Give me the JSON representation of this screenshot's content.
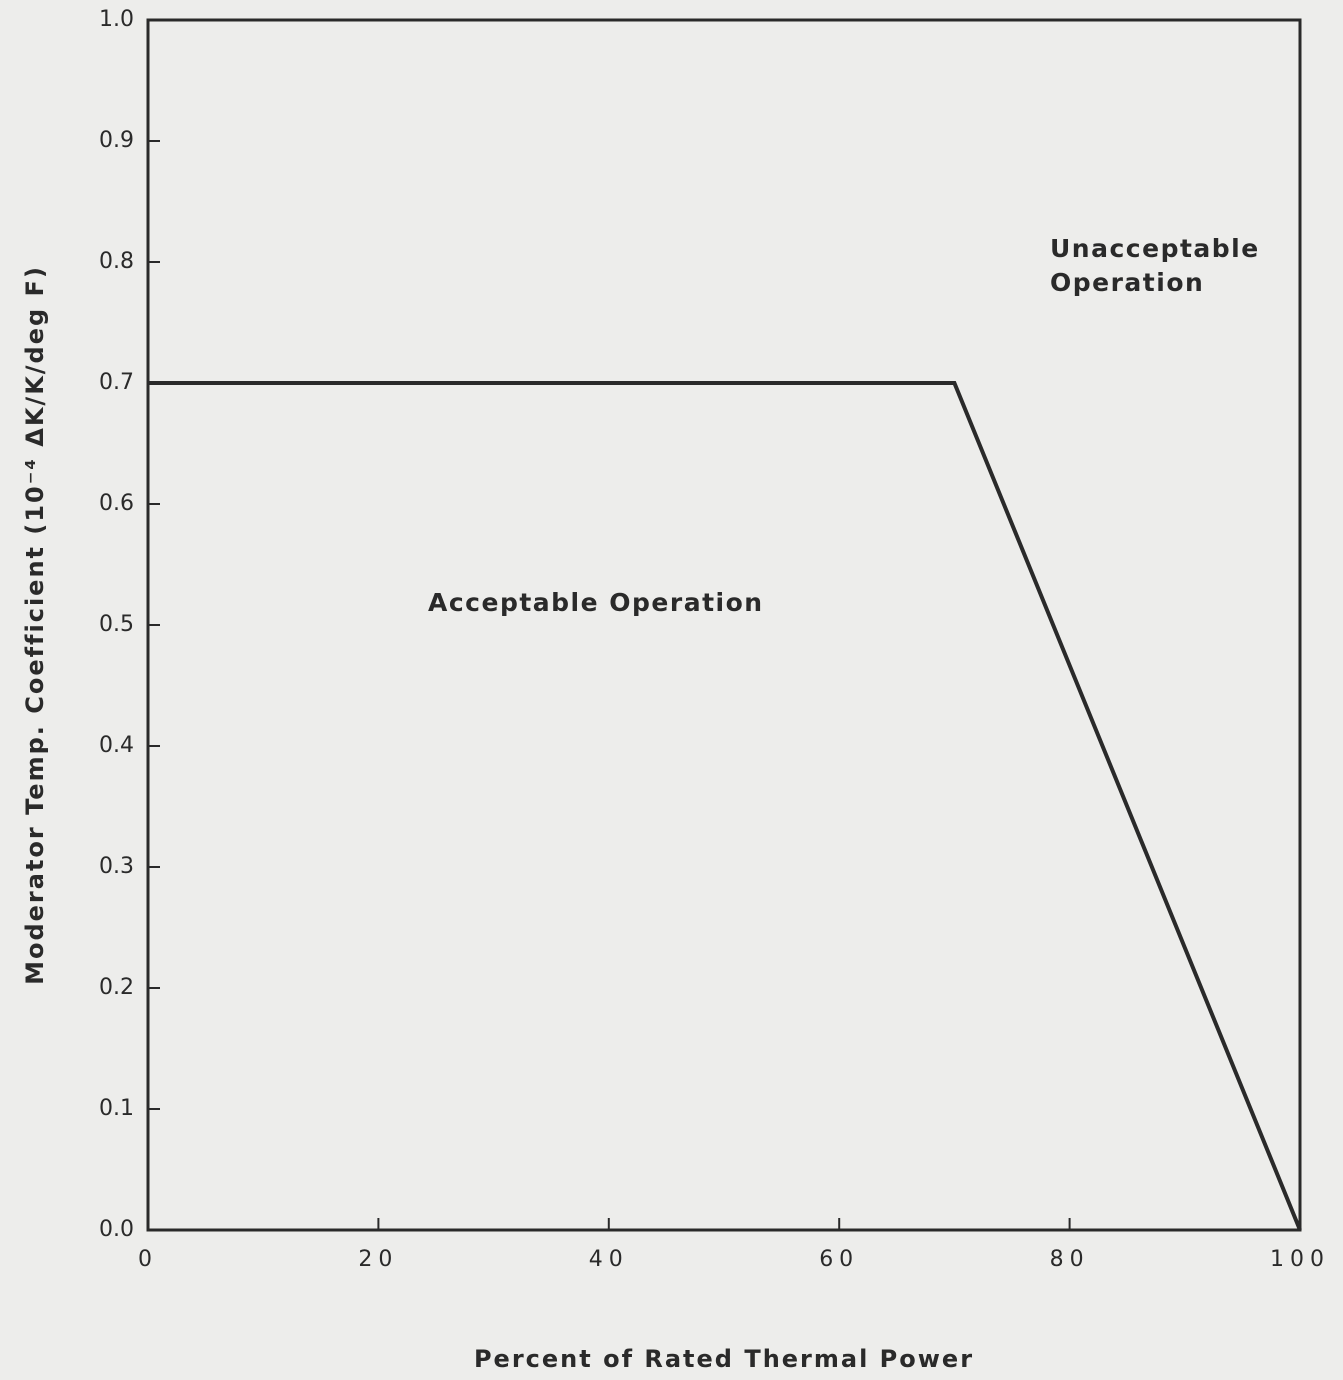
{
  "chart_data": {
    "type": "line",
    "xlabel": "Percent of Rated Thermal Power",
    "ylabel": "Moderator Temp. Coefficient  (10⁻⁴ ΔK/K/deg F)",
    "x": [
      0,
      70,
      100
    ],
    "values": [
      0.7,
      0.7,
      0
    ],
    "color": "#2a2a2a",
    "xlim": [
      0,
      100
    ],
    "xticks": [
      0,
      20,
      40,
      60,
      80,
      100
    ],
    "ylim": [
      0,
      1
    ],
    "yticks": [
      {
        "value": 0,
        "label": "0.0"
      },
      0.1,
      0.2,
      0.3,
      0.4,
      0.5,
      0.6,
      0.7,
      0.8,
      0.9,
      {
        "value": 1,
        "label": "1.0"
      }
    ],
    "grid": false,
    "annotations": [
      [
        "Unacceptable",
        "Operation"
      ],
      [
        "Acceptable Operation"
      ]
    ]
  }
}
